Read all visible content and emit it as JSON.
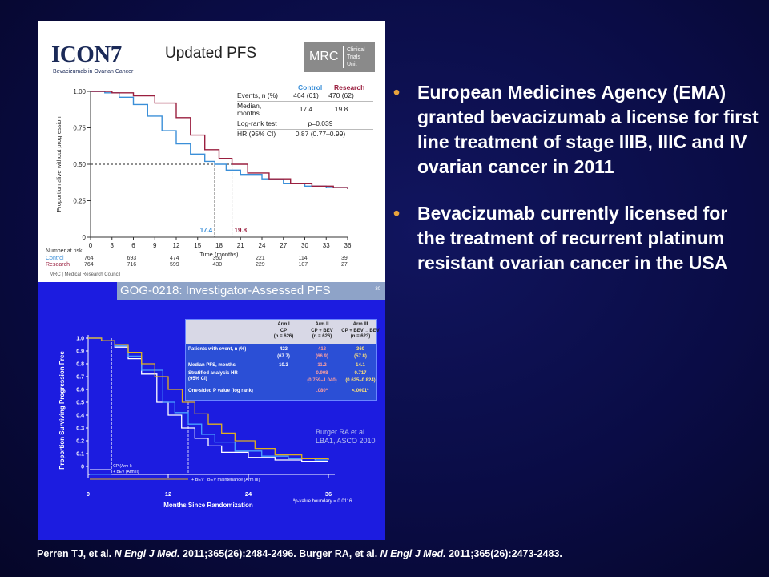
{
  "icon7": {
    "logo": "ICON7",
    "logo_subtitle": "Bevacizumab in Ovarian Cancer",
    "title": "Updated PFS",
    "mrc_logo": "MRC",
    "mrc_unit": [
      "Clinical",
      "Trials",
      "Unit"
    ],
    "stats_header": {
      "control": "Control",
      "research": "Research"
    },
    "stats_rows": [
      {
        "label": [
          "Events, n (%)"
        ],
        "control": "464 (61)",
        "research": "470 (62)"
      },
      {
        "label": [
          "Median,",
          "months"
        ],
        "control": "17.4",
        "research": "19.8"
      },
      {
        "label": [
          "Log-rank test"
        ],
        "combined": "p=0.039"
      },
      {
        "label": [
          "HR (95% CI)"
        ],
        "combined": "0.87 (0.77–0.99)"
      }
    ],
    "risk_title": "Number at risk",
    "footer": "MRC | Medical Research Council"
  },
  "gog": {
    "title": "GOG-0218: Investigator-Assessed PFS",
    "page_number": "30",
    "table": {
      "arms": [
        {
          "arm": "Arm I",
          "treatment": "CP",
          "n": "(n = 626)"
        },
        {
          "arm": "Arm II",
          "treatment": "CP + BEV",
          "n": "(n = 626)"
        },
        {
          "arm": "Arm III",
          "treatment": "CP + BEV →BEV",
          "n": "(n = 623)"
        }
      ],
      "rows": [
        {
          "label": [
            "Patients with event, n (%)"
          ],
          "values": [
            "423\n(67.7)",
            "418\n(66.9)",
            "360\n(57.8)"
          ]
        },
        {
          "label": [
            "Median PFS, months"
          ],
          "values": [
            "10.3",
            "11.2",
            "14.1"
          ]
        },
        {
          "label": [
            "Stratified analysis  HR",
            "(95% CI)"
          ],
          "values": [
            "",
            "0.908\n(0.759–1.040)",
            "0.717\n(0.625–0.824)"
          ]
        },
        {
          "label": [
            "One-sided P value (log rank)"
          ],
          "values": [
            "",
            ".080ª",
            "<.0001ª"
          ]
        }
      ]
    },
    "citation": [
      "Burger RA et al.",
      "LBA1, ASCO 2010"
    ],
    "regimen_labels": [
      "CP (Arm I)",
      "+ BEV (Arm II)",
      "+ BEV",
      "BEV maintenance (Arm III)"
    ],
    "p_value_note": "ªp-value boundary = 0.0116"
  },
  "bullets": [
    "European Medicines Agency (EMA) granted bevacizumab a license for first line treatment of stage IIIB, IIIC and IV ovarian cancer in 2011",
    "Bevacizumab currently licensed for the treatment of recurrent platinum resistant ovarian cancer in the USA"
  ],
  "citation": {
    "part1": "Perren TJ, et al. ",
    "journal1": "N Engl J Med.",
    "part2": " 2011;365(26):2484-2496. Burger RA, et al. ",
    "journal2": "N Engl J Med.",
    "part3": " 2011;365(26):2473-2483."
  },
  "colors": {
    "background": "#0a0c45",
    "bullet_marker": "#e8a33c",
    "control": "#3b8fd8",
    "research": "#9a1f3f",
    "gog_panel": "#1c1ce0",
    "arm1": "#ffffff",
    "arm2": "#4aa0ff",
    "arm3": "#e0b020"
  },
  "chart_data": [
    {
      "type": "line",
      "title": "Updated PFS",
      "xlabel": "Time (months)",
      "ylabel": "Proportion alive without progression",
      "x_ticks": [
        0,
        3,
        6,
        9,
        12,
        15,
        18,
        21,
        24,
        27,
        30,
        33,
        36
      ],
      "y_ticks": [
        "0",
        "0.25",
        "0.50",
        "0.75",
        "1.00"
      ],
      "xlim": [
        0,
        36
      ],
      "ylim": [
        0,
        1
      ],
      "series": [
        {
          "name": "Control",
          "color": "#3b8fd8",
          "points": [
            [
              0,
              1
            ],
            [
              2,
              0.99
            ],
            [
              4,
              0.96
            ],
            [
              6,
              0.91
            ],
            [
              8,
              0.83
            ],
            [
              10,
              0.73
            ],
            [
              12,
              0.64
            ],
            [
              14,
              0.57
            ],
            [
              16,
              0.52
            ],
            [
              17.4,
              0.5
            ],
            [
              19,
              0.46
            ],
            [
              21,
              0.43
            ],
            [
              24,
              0.4
            ],
            [
              27,
              0.37
            ],
            [
              30,
              0.35
            ],
            [
              33,
              0.34
            ],
            [
              36,
              0.33
            ]
          ]
        },
        {
          "name": "Research",
          "color": "#9a1f3f",
          "points": [
            [
              0,
              1
            ],
            [
              3,
              0.99
            ],
            [
              6,
              0.97
            ],
            [
              9,
              0.92
            ],
            [
              12,
              0.82
            ],
            [
              14,
              0.7
            ],
            [
              16,
              0.6
            ],
            [
              18,
              0.54
            ],
            [
              19.8,
              0.5
            ],
            [
              22,
              0.44
            ],
            [
              25,
              0.4
            ],
            [
              28,
              0.37
            ],
            [
              31,
              0.35
            ],
            [
              34,
              0.34
            ],
            [
              36,
              0.33
            ]
          ]
        }
      ],
      "median_labels": [
        {
          "text": "17.4",
          "x": 17.4,
          "series": "Control"
        },
        {
          "text": "19.8",
          "x": 19.8,
          "series": "Research"
        }
      ],
      "reference_y": 0.5,
      "number_at_risk": {
        "times": [
          0,
          6,
          12,
          18,
          24,
          30,
          36
        ],
        "rows": [
          {
            "name": "Control",
            "values": [
              "764",
              "693",
              "474",
              "350",
              "221",
              "114",
              "39"
            ]
          },
          {
            "name": "Research",
            "values": [
              "764",
              "716",
              "599",
              "430",
              "229",
              "107",
              "27"
            ]
          }
        ]
      },
      "grid": false,
      "legend": "table top-right"
    },
    {
      "type": "line",
      "title": "GOG-0218: Investigator-Assessed PFS",
      "xlabel": "Months Since Randomization",
      "ylabel": "Proportion Surviving Progression Free",
      "x_ticks": [
        0,
        12,
        24,
        36
      ],
      "y_ticks": [
        "0",
        "0.1",
        "0.2",
        "0.3",
        "0.4",
        "0.5",
        "0.6",
        "0.7",
        "0.8",
        "0.9",
        "1.0"
      ],
      "xlim": [
        0,
        36
      ],
      "ylim": [
        0,
        1
      ],
      "series": [
        {
          "color": "#ffffff",
          "points": [
            [
              0,
              1
            ],
            [
              2,
              0.98
            ],
            [
              4,
              0.93
            ],
            [
              6,
              0.84
            ],
            [
              8,
              0.72
            ],
            [
              10.3,
              0.5
            ],
            [
              12,
              0.4
            ],
            [
              14,
              0.3
            ],
            [
              16,
              0.22
            ],
            [
              18,
              0.16
            ],
            [
              20,
              0.11
            ],
            [
              24,
              0.07
            ],
            [
              28,
              0.05
            ],
            [
              32,
              0.04
            ],
            [
              36,
              0.04
            ]
          ]
        },
        {
          "color": "#4aa0ff",
          "points": [
            [
              0,
              1
            ],
            [
              2,
              0.98
            ],
            [
              4,
              0.94
            ],
            [
              6,
              0.86
            ],
            [
              8,
              0.75
            ],
            [
              11.2,
              0.5
            ],
            [
              13,
              0.42
            ],
            [
              15,
              0.33
            ],
            [
              17,
              0.25
            ],
            [
              19,
              0.19
            ],
            [
              22,
              0.12
            ],
            [
              26,
              0.08
            ],
            [
              30,
              0.06
            ],
            [
              34,
              0.05
            ],
            [
              36,
              0.05
            ]
          ]
        },
        {
          "color": "#e0b020",
          "points": [
            [
              0,
              1
            ],
            [
              2,
              0.98
            ],
            [
              4,
              0.95
            ],
            [
              6,
              0.89
            ],
            [
              8,
              0.8
            ],
            [
              10,
              0.7
            ],
            [
              12,
              0.6
            ],
            [
              14.1,
              0.5
            ],
            [
              16,
              0.41
            ],
            [
              18,
              0.33
            ],
            [
              20,
              0.26
            ],
            [
              22,
              0.2
            ],
            [
              25,
              0.14
            ],
            [
              28,
              0.09
            ],
            [
              32,
              0.06
            ],
            [
              36,
              0.05
            ]
          ]
        }
      ],
      "grid": false,
      "legend": "table top-right"
    }
  ]
}
